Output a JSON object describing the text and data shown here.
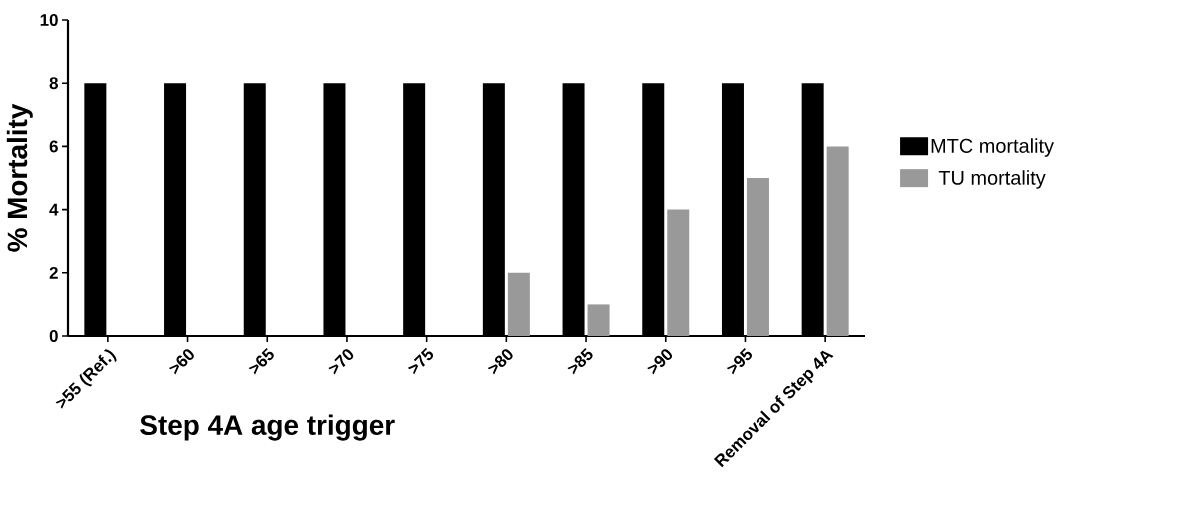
{
  "chart_data": {
    "type": "bar",
    "xlabel": "Step 4A age trigger",
    "ylabel": "% Mortality",
    "categories": [
      ">55 (Ref.)",
      ">60",
      ">65",
      ">70",
      ">75",
      ">80",
      ">85",
      ">90",
      ">95",
      "Removal of Step 4A"
    ],
    "series": [
      {
        "name": "MTC mortality",
        "color": "#000000",
        "values": [
          8,
          8,
          8,
          8,
          8,
          8,
          8,
          8,
          8,
          8
        ]
      },
      {
        "name": "TU mortality",
        "color": "#999999",
        "values": [
          0,
          0,
          0,
          0,
          0,
          2,
          1,
          4,
          5,
          6
        ]
      }
    ],
    "ylim": [
      0,
      10
    ],
    "yticks": [
      0,
      2,
      4,
      6,
      8,
      10
    ],
    "legend": "right"
  }
}
